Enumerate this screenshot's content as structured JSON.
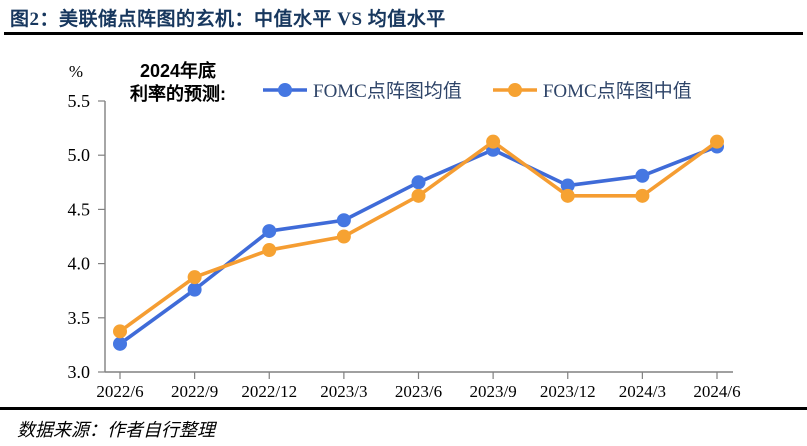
{
  "header": {
    "title": "图2：美联储点阵图的玄机：中值水平 VS 均值水平"
  },
  "chart_data": {
    "type": "line",
    "unit_label": "%",
    "annotation_line1": "2024年底",
    "annotation_line2": "利率的预测:",
    "categories": [
      "2022/6",
      "2022/9",
      "2022/12",
      "2023/3",
      "2023/6",
      "2023/9",
      "2023/12",
      "2024/3",
      "2024/6"
    ],
    "series": [
      {
        "name": "FOMC点阵图均值",
        "color": "#3F6BD8",
        "marker_color": "#4577E2",
        "values": [
          3.26,
          3.76,
          4.3,
          4.4,
          4.75,
          5.05,
          4.72,
          4.81,
          5.08
        ]
      },
      {
        "name": "FOMC点阵图中值",
        "color": "#F59D32",
        "marker_color": "#F6A232",
        "values": [
          3.375,
          3.875,
          4.125,
          4.25,
          4.625,
          5.125,
          4.625,
          4.625,
          5.125
        ]
      }
    ],
    "ylim": [
      3.0,
      5.5
    ],
    "ytick_step": 0.5,
    "yticks": [
      3.0,
      3.5,
      4.0,
      4.5,
      5.0,
      5.5
    ],
    "grid": false,
    "legend_position": "top-center"
  },
  "footer": {
    "source": "数据来源：作者自行整理"
  },
  "style": {
    "title_color": "#17375E",
    "rule_color": "#000000",
    "axis_color": "#808080",
    "legend_text_color": "#2e4468"
  }
}
